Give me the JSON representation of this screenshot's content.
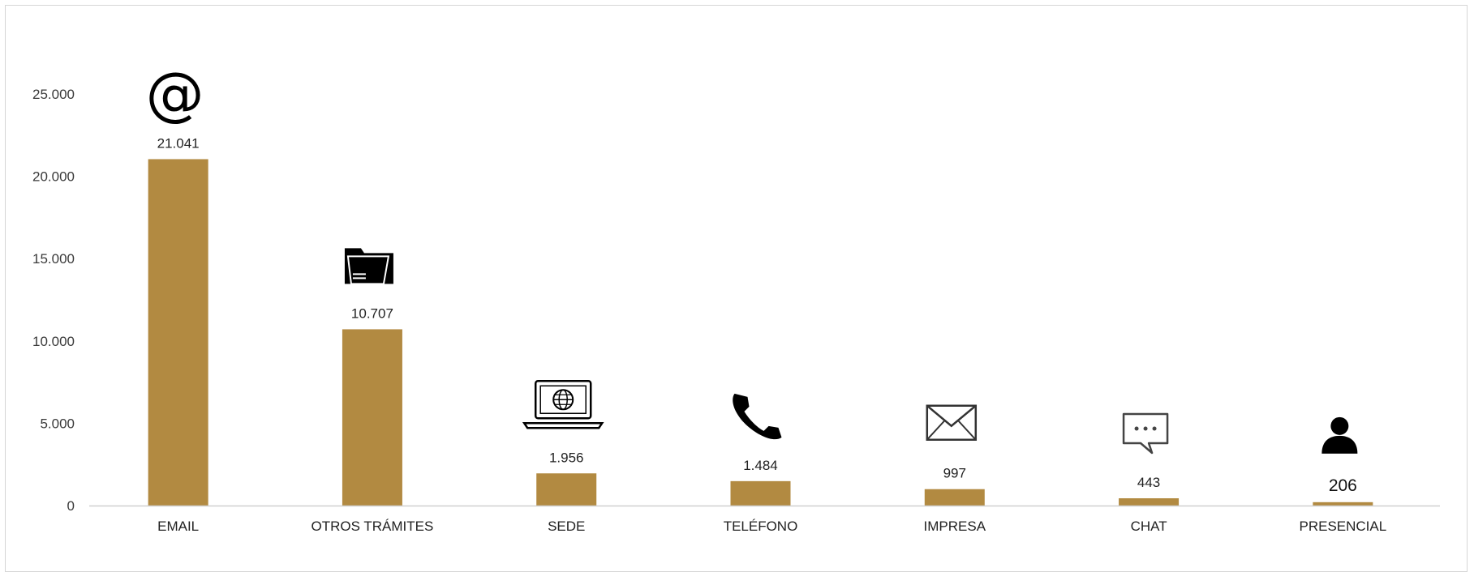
{
  "chart_data": {
    "type": "bar",
    "categories": [
      "EMAIL",
      "OTROS TRÁMITES",
      "SEDE",
      "TELÉFONO",
      "IMPRESA",
      "CHAT",
      "PRESENCIAL"
    ],
    "values": [
      21041,
      10707,
      1956,
      1484,
      997,
      443,
      206
    ],
    "value_labels": [
      "21.041",
      "10.707",
      "1.956",
      "1.484",
      "997",
      "443",
      "206"
    ],
    "icons": [
      "at-sign-icon",
      "folder-icon",
      "laptop-globe-icon",
      "telephone-icon",
      "envelope-icon",
      "chat-bubble-icon",
      "person-icon"
    ],
    "title": "",
    "xlabel": "",
    "ylabel": "",
    "ylim": [
      0,
      25000
    ],
    "yticks": [
      0,
      5000,
      10000,
      15000,
      20000,
      25000
    ],
    "ytick_labels": [
      "0",
      "5.000",
      "10.000",
      "15.000",
      "20.000",
      "25.000"
    ],
    "grid": false,
    "legend": "none",
    "bar_color": "#b28a41",
    "axis_color": "#d0d0d0"
  }
}
